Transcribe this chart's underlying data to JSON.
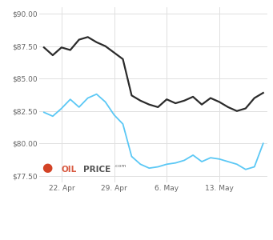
{
  "wti_x": [
    0,
    1,
    2,
    3,
    4,
    5,
    6,
    7,
    8,
    9,
    10,
    11,
    12,
    13,
    14,
    15,
    16,
    17,
    18,
    19,
    20,
    21,
    22,
    23,
    24,
    25
  ],
  "wti_y": [
    82.4,
    82.1,
    82.7,
    83.4,
    82.8,
    83.5,
    83.8,
    83.2,
    82.2,
    81.5,
    79.0,
    78.4,
    78.1,
    78.2,
    78.4,
    78.5,
    78.7,
    79.1,
    78.6,
    78.9,
    78.8,
    78.6,
    78.4,
    78.0,
    78.2,
    80.0
  ],
  "brent_x": [
    0,
    1,
    2,
    3,
    4,
    5,
    6,
    7,
    8,
    9,
    10,
    11,
    12,
    13,
    14,
    15,
    16,
    17,
    18,
    19,
    20,
    21,
    22,
    23,
    24,
    25
  ],
  "brent_y": [
    87.4,
    86.8,
    87.4,
    87.2,
    88.0,
    88.2,
    87.8,
    87.5,
    87.0,
    86.5,
    83.7,
    83.3,
    83.0,
    82.8,
    83.4,
    83.1,
    83.3,
    83.6,
    83.0,
    83.5,
    83.2,
    82.8,
    82.5,
    82.7,
    83.5,
    83.9
  ],
  "xtick_positions": [
    2,
    8,
    14,
    20
  ],
  "xtick_labels": [
    "22. Apr",
    "29. Apr",
    "6. May",
    "13. May"
  ],
  "ytick_positions": [
    77.5,
    80.0,
    82.5,
    85.0,
    87.5,
    90.0
  ],
  "ytick_labels": [
    "$77.50",
    "$80.00",
    "$82.50",
    "$85.00",
    "$87.50",
    "$90.00"
  ],
  "ylim": [
    77.0,
    90.5
  ],
  "xlim": [
    -0.5,
    25.5
  ],
  "wti_color": "#5bc8f5",
  "brent_color": "#2b2b2b",
  "grid_color": "#e0e0e0",
  "bg_color": "#ffffff",
  "watermark_circle_color": "#cc2200",
  "watermark_oil_color": "#cc2200",
  "watermark_price_color": "#1a1a1a"
}
